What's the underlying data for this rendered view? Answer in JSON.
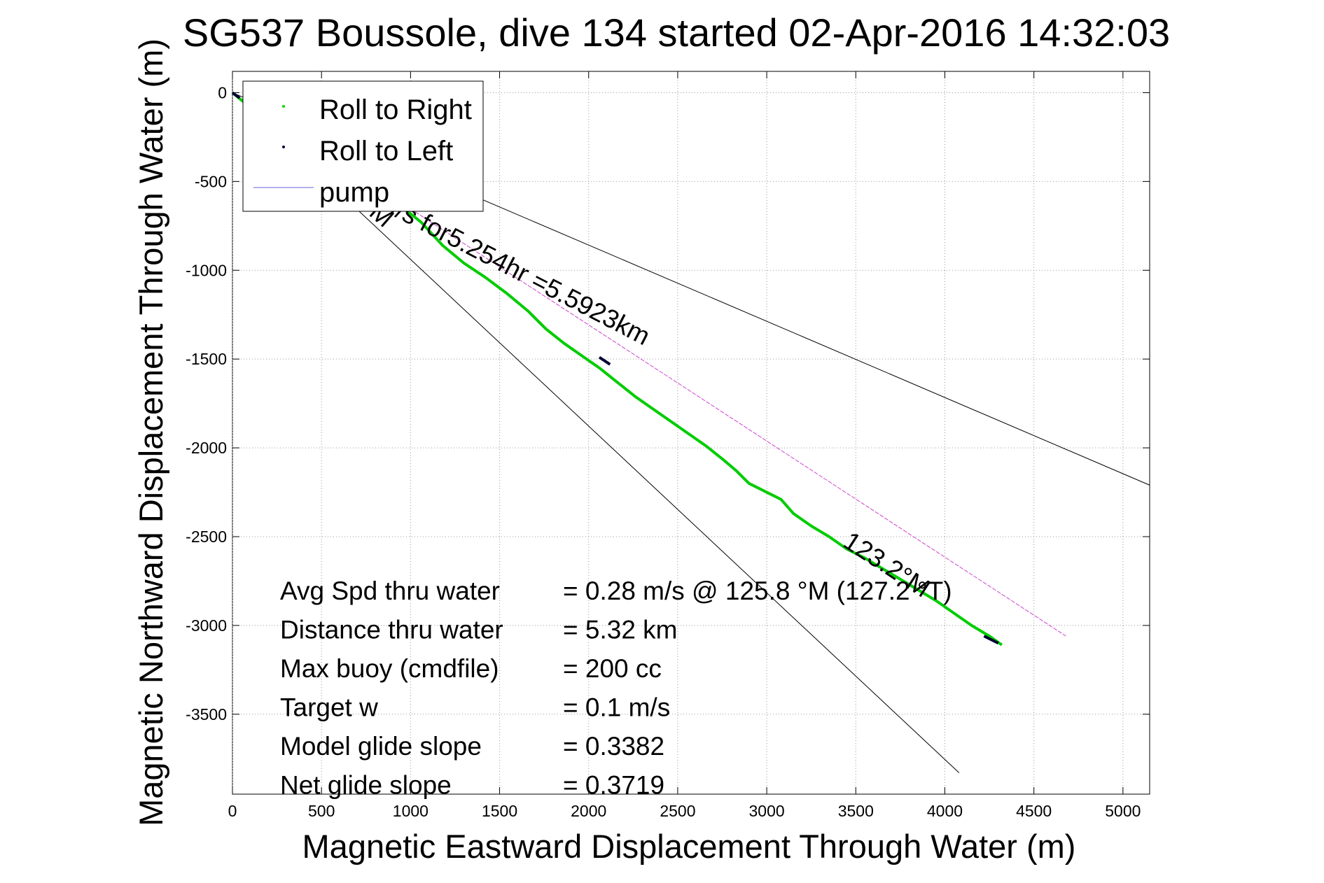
{
  "chart_data": {
    "type": "line",
    "title": "SG537 Boussole, dive 134 started 02-Apr-2016 14:32:03",
    "xlabel": "Magnetic Eastward Displacement Through Water (m)",
    "ylabel": "Magnetic Northward Displacement Through Water (m)",
    "xlim": [
      0,
      5150
    ],
    "ylim": [
      -3950,
      120
    ],
    "xticks": [
      0,
      500,
      1000,
      1500,
      2000,
      2500,
      3000,
      3500,
      4000,
      4500,
      5000
    ],
    "yticks": [
      0,
      -500,
      -1000,
      -1500,
      -2000,
      -2500,
      -3000,
      -3500
    ],
    "grid": true,
    "legend": {
      "placement": "top-left",
      "entries": [
        {
          "name": "Roll to Right",
          "color": "#00dd00",
          "marker": "dot"
        },
        {
          "name": "Roll to Left",
          "color": "#000033",
          "marker": "dot"
        },
        {
          "name": "pump",
          "color": "#6666dd",
          "marker": "line"
        }
      ]
    },
    "series": [
      {
        "name": "Roll to Right",
        "color": "#00cc00",
        "x": [
          0,
          60,
          150,
          260,
          380,
          500,
          620,
          740,
          860,
          960,
          1060,
          1180,
          1300,
          1420,
          1540,
          1660,
          1760,
          1860,
          1960,
          2060,
          2160,
          2260,
          2360,
          2460,
          2560,
          2660,
          2760,
          2830,
          2900,
          3000,
          3080,
          3150,
          3250,
          3350,
          3450,
          3550,
          3650,
          3750,
          3850,
          3950,
          4050,
          4150,
          4250,
          4320
        ],
        "y": [
          0,
          -50,
          -100,
          -160,
          -250,
          -330,
          -420,
          -500,
          -580,
          -650,
          -730,
          -860,
          -960,
          -1040,
          -1130,
          -1230,
          -1330,
          -1410,
          -1480,
          -1550,
          -1630,
          -1710,
          -1780,
          -1850,
          -1920,
          -1990,
          -2070,
          -2130,
          -2200,
          -2250,
          -2290,
          -2370,
          -2440,
          -2500,
          -2570,
          -2620,
          -2680,
          -2740,
          -2800,
          -2860,
          -2930,
          -3000,
          -3060,
          -3110
        ]
      },
      {
        "name": "Roll to Left",
        "color": "#000033",
        "segments": [
          {
            "x": [
              0,
              40
            ],
            "y": [
              0,
              -30
            ]
          },
          {
            "x": [
              2060,
              2120
            ],
            "y": [
              -1490,
              -1530
            ]
          },
          {
            "x": [
              4220,
              4300
            ],
            "y": [
              -3060,
              -3100
            ]
          }
        ]
      },
      {
        "name": "bearing line",
        "color": "#cc44cc",
        "x": [
          0,
          4680
        ],
        "y": [
          0,
          -3060
        ]
      },
      {
        "name": "upper bound",
        "color": "#000000",
        "x": [
          0,
          5150
        ],
        "y": [
          0,
          -2210
        ]
      },
      {
        "name": "lower bound",
        "color": "#000000",
        "x": [
          0,
          4080
        ],
        "y": [
          0,
          -3830
        ]
      }
    ],
    "annotations": [
      {
        "text": "M/s for5.254hr =5.5923km",
        "x": 800,
        "y": -640,
        "angle": 27.4
      },
      {
        "text": "M",
        "x": 760,
        "y": -685,
        "angle": 41
      },
      {
        "text": "123.2°M",
        "x": 3420,
        "y": -2550,
        "angle": 33
      }
    ],
    "stats": [
      {
        "label": "Avg Spd thru water",
        "value": "=  0.28 m/s @ 125.8 °M (127.2 °T)"
      },
      {
        "label": "Distance thru water",
        "value": "=  5.32 km"
      },
      {
        "label": "Max buoy (cmdfile)",
        "value": "= 200 cc"
      },
      {
        "label": "Target w",
        "value": "= 0.1 m/s"
      },
      {
        "label": "Model glide slope",
        "value": "= 0.3382"
      },
      {
        "label": "Net glide slope",
        "value": "= 0.3719"
      }
    ]
  }
}
